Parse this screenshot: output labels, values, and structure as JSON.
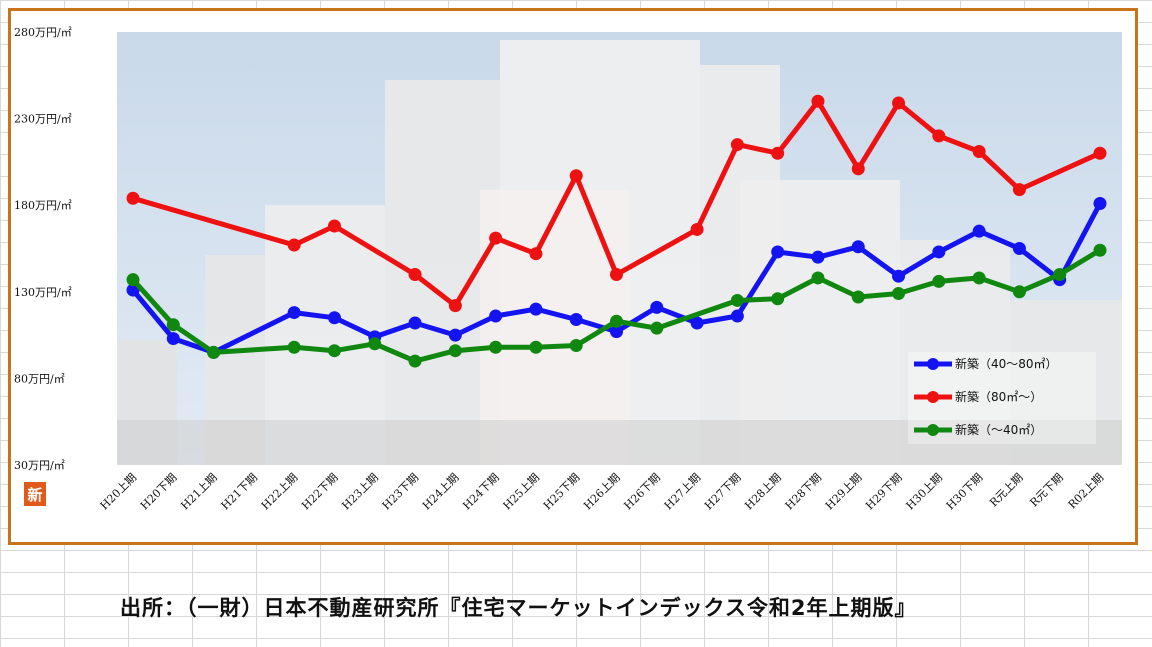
{
  "source_text": "出所：（一財）日本不動産研究所『住宅マーケットインデックス令和2年上期版』",
  "new_badge": "新",
  "chart_data": {
    "type": "line",
    "ylim": [
      30,
      280
    ],
    "yticks": [
      "30万円/㎡",
      "80万円/㎡",
      "130万円/㎡",
      "180万円/㎡",
      "230万円/㎡",
      "280万円/㎡"
    ],
    "ytick_values": [
      30,
      80,
      130,
      180,
      230,
      280
    ],
    "categories": [
      "H20上期",
      "H20下期",
      "H21上期",
      "H21下期",
      "H22上期",
      "H22下期",
      "H23上期",
      "H23下期",
      "H24上期",
      "H24下期",
      "H25上期",
      "H25下期",
      "H26上期",
      "H26下期",
      "H27上期",
      "H27下期",
      "H28上期",
      "H28下期",
      "H29上期",
      "H29下期",
      "H30上期",
      "H30下期",
      "R元上期",
      "R元下期",
      "R02上期"
    ],
    "legend_position": "bottom-right",
    "series": [
      {
        "name": "新築（40～80㎡）",
        "color": "#1414f0",
        "values": [
          131,
          103,
          95,
          null,
          118,
          115,
          104,
          112,
          105,
          116,
          120,
          114,
          107,
          121,
          112,
          116,
          153,
          150,
          156,
          139,
          153,
          165,
          155,
          137,
          181
        ]
      },
      {
        "name": "新築（80㎡～）",
        "color": "#ee1111",
        "values": [
          184,
          null,
          null,
          null,
          157,
          168,
          null,
          140,
          122,
          161,
          152,
          197,
          140,
          null,
          166,
          215,
          210,
          240,
          201,
          239,
          220,
          211,
          189,
          null,
          210
        ]
      },
      {
        "name": "新築（～40㎡）",
        "color": "#108810",
        "values": [
          137,
          111,
          95,
          null,
          98,
          96,
          100,
          90,
          96,
          98,
          98,
          99,
          113,
          109,
          null,
          125,
          126,
          138,
          127,
          129,
          136,
          138,
          130,
          140,
          154
        ]
      }
    ]
  }
}
